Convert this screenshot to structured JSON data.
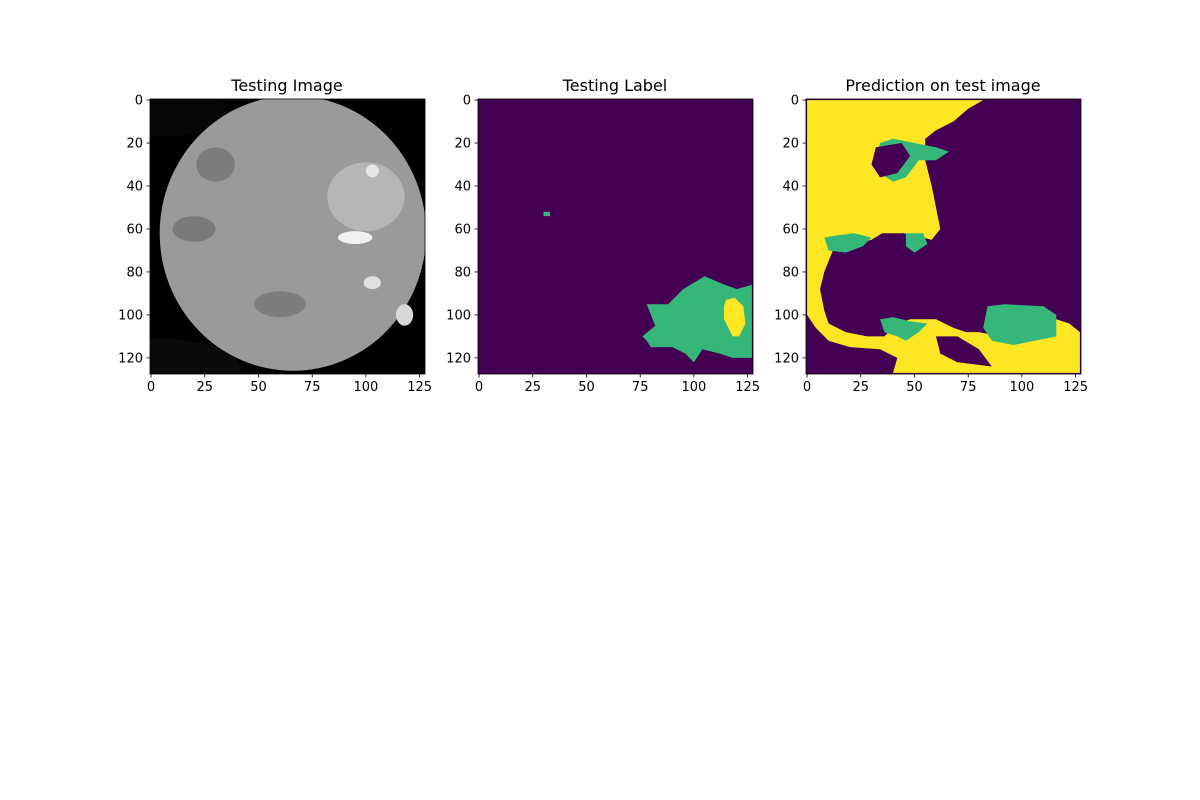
{
  "chart_data": [
    {
      "type": "heatmap",
      "title": "Testing Image",
      "colormap": "gray",
      "image_size": [
        128,
        128
      ],
      "xlim": [
        0,
        127
      ],
      "ylim": [
        127,
        0
      ],
      "xticks": [
        0,
        25,
        50,
        75,
        100,
        125
      ],
      "yticks": [
        0,
        20,
        40,
        60,
        80,
        100,
        120
      ],
      "regions": [
        {
          "label": "background",
          "shade": "#060606",
          "ellipse": {
            "cx": 5,
            "cy": 5,
            "rx": 30,
            "ry": 12
          }
        },
        {
          "label": "background",
          "shade": "#0a0a0a",
          "ellipse": {
            "cx": 2,
            "cy": 125,
            "rx": 40,
            "ry": 14
          }
        },
        {
          "label": "tissue",
          "shade": "#9a9a9a",
          "ellipse": {
            "cx": 66,
            "cy": 62,
            "rx": 62,
            "ry": 64
          }
        },
        {
          "label": "tissue-dark",
          "shade": "#7a7a7a",
          "ellipse": {
            "cx": 20,
            "cy": 60,
            "rx": 10,
            "ry": 6
          }
        },
        {
          "label": "tissue-dark",
          "shade": "#7c7c7c",
          "ellipse": {
            "cx": 30,
            "cy": 30,
            "rx": 9,
            "ry": 8
          }
        },
        {
          "label": "tissue-dark",
          "shade": "#7d7d7d",
          "ellipse": {
            "cx": 60,
            "cy": 95,
            "rx": 12,
            "ry": 6
          }
        },
        {
          "label": "tissue-light",
          "shade": "#b6b6b6",
          "ellipse": {
            "cx": 100,
            "cy": 45,
            "rx": 18,
            "ry": 16
          }
        },
        {
          "label": "bright-spot",
          "shade": "#f2f2f2",
          "ellipse": {
            "cx": 95,
            "cy": 64,
            "rx": 8,
            "ry": 3
          }
        },
        {
          "label": "bright-spot",
          "shade": "#e0e0e0",
          "ellipse": {
            "cx": 103,
            "cy": 85,
            "rx": 4,
            "ry": 3
          }
        },
        {
          "label": "bright-spot",
          "shade": "#e6e6e6",
          "ellipse": {
            "cx": 103,
            "cy": 33,
            "rx": 3,
            "ry": 3
          }
        },
        {
          "label": "bright-spot",
          "shade": "#d8d8d8",
          "ellipse": {
            "cx": 118,
            "cy": 100,
            "rx": 4,
            "ry": 5
          }
        }
      ]
    },
    {
      "type": "heatmap",
      "title": "Testing Label",
      "colormap": "viridis",
      "image_size": [
        128,
        128
      ],
      "xlim": [
        0,
        127
      ],
      "ylim": [
        127,
        0
      ],
      "xticks": [
        0,
        25,
        50,
        75,
        100,
        125
      ],
      "yticks": [
        0,
        20,
        40,
        60,
        80,
        100,
        120
      ],
      "class_colors": {
        "0": "#440154",
        "1": "#35b779",
        "2": "#fde725"
      },
      "background_class": 0,
      "regions": [
        {
          "class": 1,
          "polygon": [
            [
              30,
              52
            ],
            [
              33,
              52
            ],
            [
              33,
              54
            ],
            [
              30,
              54
            ]
          ]
        },
        {
          "class": 1,
          "polygon": [
            [
              78,
              95
            ],
            [
              88,
              95
            ],
            [
              95,
              88
            ],
            [
              105,
              82
            ],
            [
              112,
              85
            ],
            [
              120,
              88
            ],
            [
              127,
              86
            ],
            [
              127,
              120
            ],
            [
              118,
              120
            ],
            [
              112,
              118
            ],
            [
              104,
              116
            ],
            [
              100,
              122
            ],
            [
              96,
              118
            ],
            [
              90,
              115
            ],
            [
              80,
              115
            ],
            [
              78,
              112
            ],
            [
              76,
              110
            ],
            [
              82,
              105
            ],
            [
              80,
              100
            ]
          ]
        },
        {
          "class": 2,
          "polygon": [
            [
              115,
              93
            ],
            [
              119,
              92
            ],
            [
              123,
              96
            ],
            [
              124,
              104
            ],
            [
              121,
              110
            ],
            [
              118,
              110
            ],
            [
              116,
              106
            ],
            [
              114,
              102
            ],
            [
              114,
              96
            ]
          ]
        }
      ]
    },
    {
      "type": "heatmap",
      "title": "Prediction on test image",
      "colormap": "viridis",
      "image_size": [
        128,
        128
      ],
      "xlim": [
        0,
        127
      ],
      "ylim": [
        127,
        0
      ],
      "xticks": [
        0,
        25,
        50,
        75,
        100,
        125
      ],
      "yticks": [
        0,
        20,
        40,
        60,
        80,
        100,
        120
      ],
      "class_colors": {
        "0": "#440154",
        "1": "#35b779",
        "2": "#fde725"
      },
      "background_class": 0,
      "regions": [
        {
          "class": 2,
          "polygon": [
            [
              0,
              0
            ],
            [
              82,
              0
            ],
            [
              75,
              4
            ],
            [
              68,
              10
            ],
            [
              60,
              14
            ],
            [
              55,
              18
            ],
            [
              55,
              28
            ],
            [
              58,
              40
            ],
            [
              60,
              50
            ],
            [
              62,
              60
            ],
            [
              58,
              65
            ],
            [
              45,
              62
            ],
            [
              35,
              62
            ],
            [
              30,
              65
            ],
            [
              20,
              68
            ],
            [
              12,
              70
            ],
            [
              8,
              80
            ],
            [
              6,
              88
            ],
            [
              8,
              98
            ],
            [
              10,
              104
            ],
            [
              18,
              108
            ],
            [
              28,
              110
            ],
            [
              36,
              110
            ],
            [
              42,
              104
            ],
            [
              48,
              102
            ],
            [
              60,
              102
            ],
            [
              68,
              106
            ],
            [
              74,
              108
            ],
            [
              80,
              108
            ],
            [
              90,
              110
            ],
            [
              100,
              110
            ],
            [
              110,
              106
            ],
            [
              116,
              102
            ],
            [
              122,
              104
            ],
            [
              127,
              108
            ],
            [
              127,
              127
            ],
            [
              40,
              127
            ],
            [
              42,
              120
            ],
            [
              34,
              116
            ],
            [
              20,
              115
            ],
            [
              10,
              112
            ],
            [
              4,
              106
            ],
            [
              0,
              100
            ]
          ]
        },
        {
          "class": 1,
          "polygon": [
            [
              34,
              20
            ],
            [
              40,
              18
            ],
            [
              50,
              20
            ],
            [
              60,
              22
            ],
            [
              66,
              24
            ],
            [
              60,
              28
            ],
            [
              52,
              28
            ],
            [
              46,
              36
            ],
            [
              40,
              38
            ],
            [
              34,
              34
            ],
            [
              32,
              28
            ]
          ]
        },
        {
          "class": 1,
          "polygon": [
            [
              8,
              64
            ],
            [
              14,
              63
            ],
            [
              22,
              62
            ],
            [
              30,
              64
            ],
            [
              26,
              68
            ],
            [
              18,
              71
            ],
            [
              10,
              70
            ]
          ]
        },
        {
          "class": 1,
          "polygon": [
            [
              46,
              62
            ],
            [
              54,
              62
            ],
            [
              56,
              67
            ],
            [
              50,
              71
            ],
            [
              46,
              68
            ]
          ]
        },
        {
          "class": 1,
          "polygon": [
            [
              84,
              96
            ],
            [
              92,
              95
            ],
            [
              110,
              96
            ],
            [
              116,
              100
            ],
            [
              116,
              110
            ],
            [
              106,
              112
            ],
            [
              96,
              114
            ],
            [
              86,
              112
            ],
            [
              82,
              106
            ]
          ]
        },
        {
          "class": 1,
          "polygon": [
            [
              34,
              102
            ],
            [
              40,
              101
            ],
            [
              48,
              103
            ],
            [
              56,
              104
            ],
            [
              52,
              108
            ],
            [
              46,
              112
            ],
            [
              42,
              110
            ],
            [
              36,
              108
            ]
          ]
        },
        {
          "class": 0,
          "polygon": [
            [
              32,
              22
            ],
            [
              44,
              20
            ],
            [
              48,
              26
            ],
            [
              42,
              34
            ],
            [
              34,
              36
            ],
            [
              30,
              30
            ]
          ]
        },
        {
          "class": 0,
          "polygon": [
            [
              60,
              110
            ],
            [
              70,
              110
            ],
            [
              80,
              116
            ],
            [
              86,
              124
            ],
            [
              70,
              122
            ],
            [
              62,
              118
            ]
          ]
        }
      ]
    }
  ]
}
